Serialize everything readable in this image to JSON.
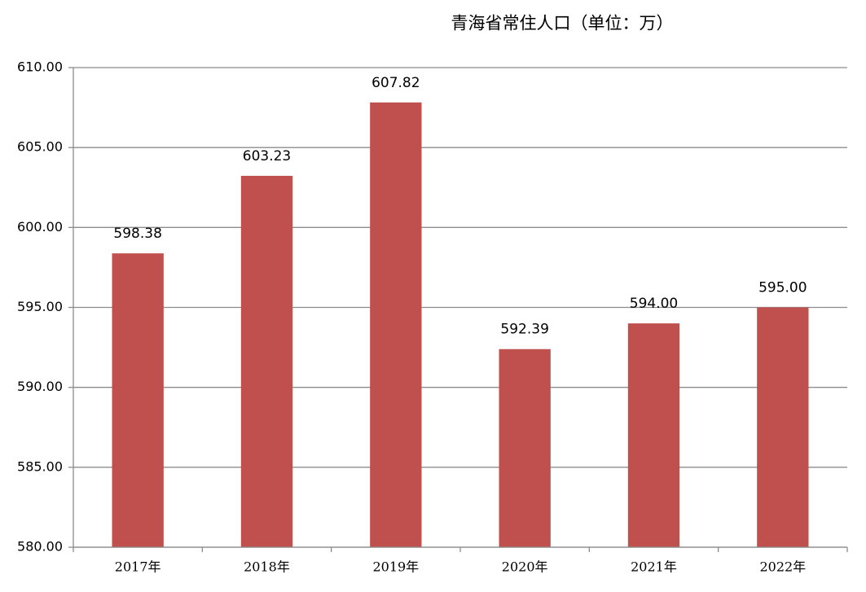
{
  "chart_data": {
    "type": "bar",
    "title": "青海省常住人口（单位：万）",
    "categories": [
      "2017年",
      "2018年",
      "2019年",
      "2020年",
      "2021年",
      "2022年"
    ],
    "values": [
      598.38,
      603.23,
      607.82,
      592.39,
      594.0,
      595.0
    ],
    "value_labels": [
      "598.38",
      "603.23",
      "607.82",
      "592.39",
      "594.00",
      "595.00"
    ],
    "color": "#c0504d",
    "ylim": [
      580,
      610
    ],
    "yticks": [
      {
        "value": 580,
        "label": "580.00"
      },
      {
        "value": 585,
        "label": "585.00"
      },
      {
        "value": 590,
        "label": "590.00"
      },
      {
        "value": 595,
        "label": "595.00"
      },
      {
        "value": 600,
        "label": "600.00"
      },
      {
        "value": 605,
        "label": "605.00"
      },
      {
        "value": 610,
        "label": "610.00"
      }
    ],
    "grid": true
  }
}
